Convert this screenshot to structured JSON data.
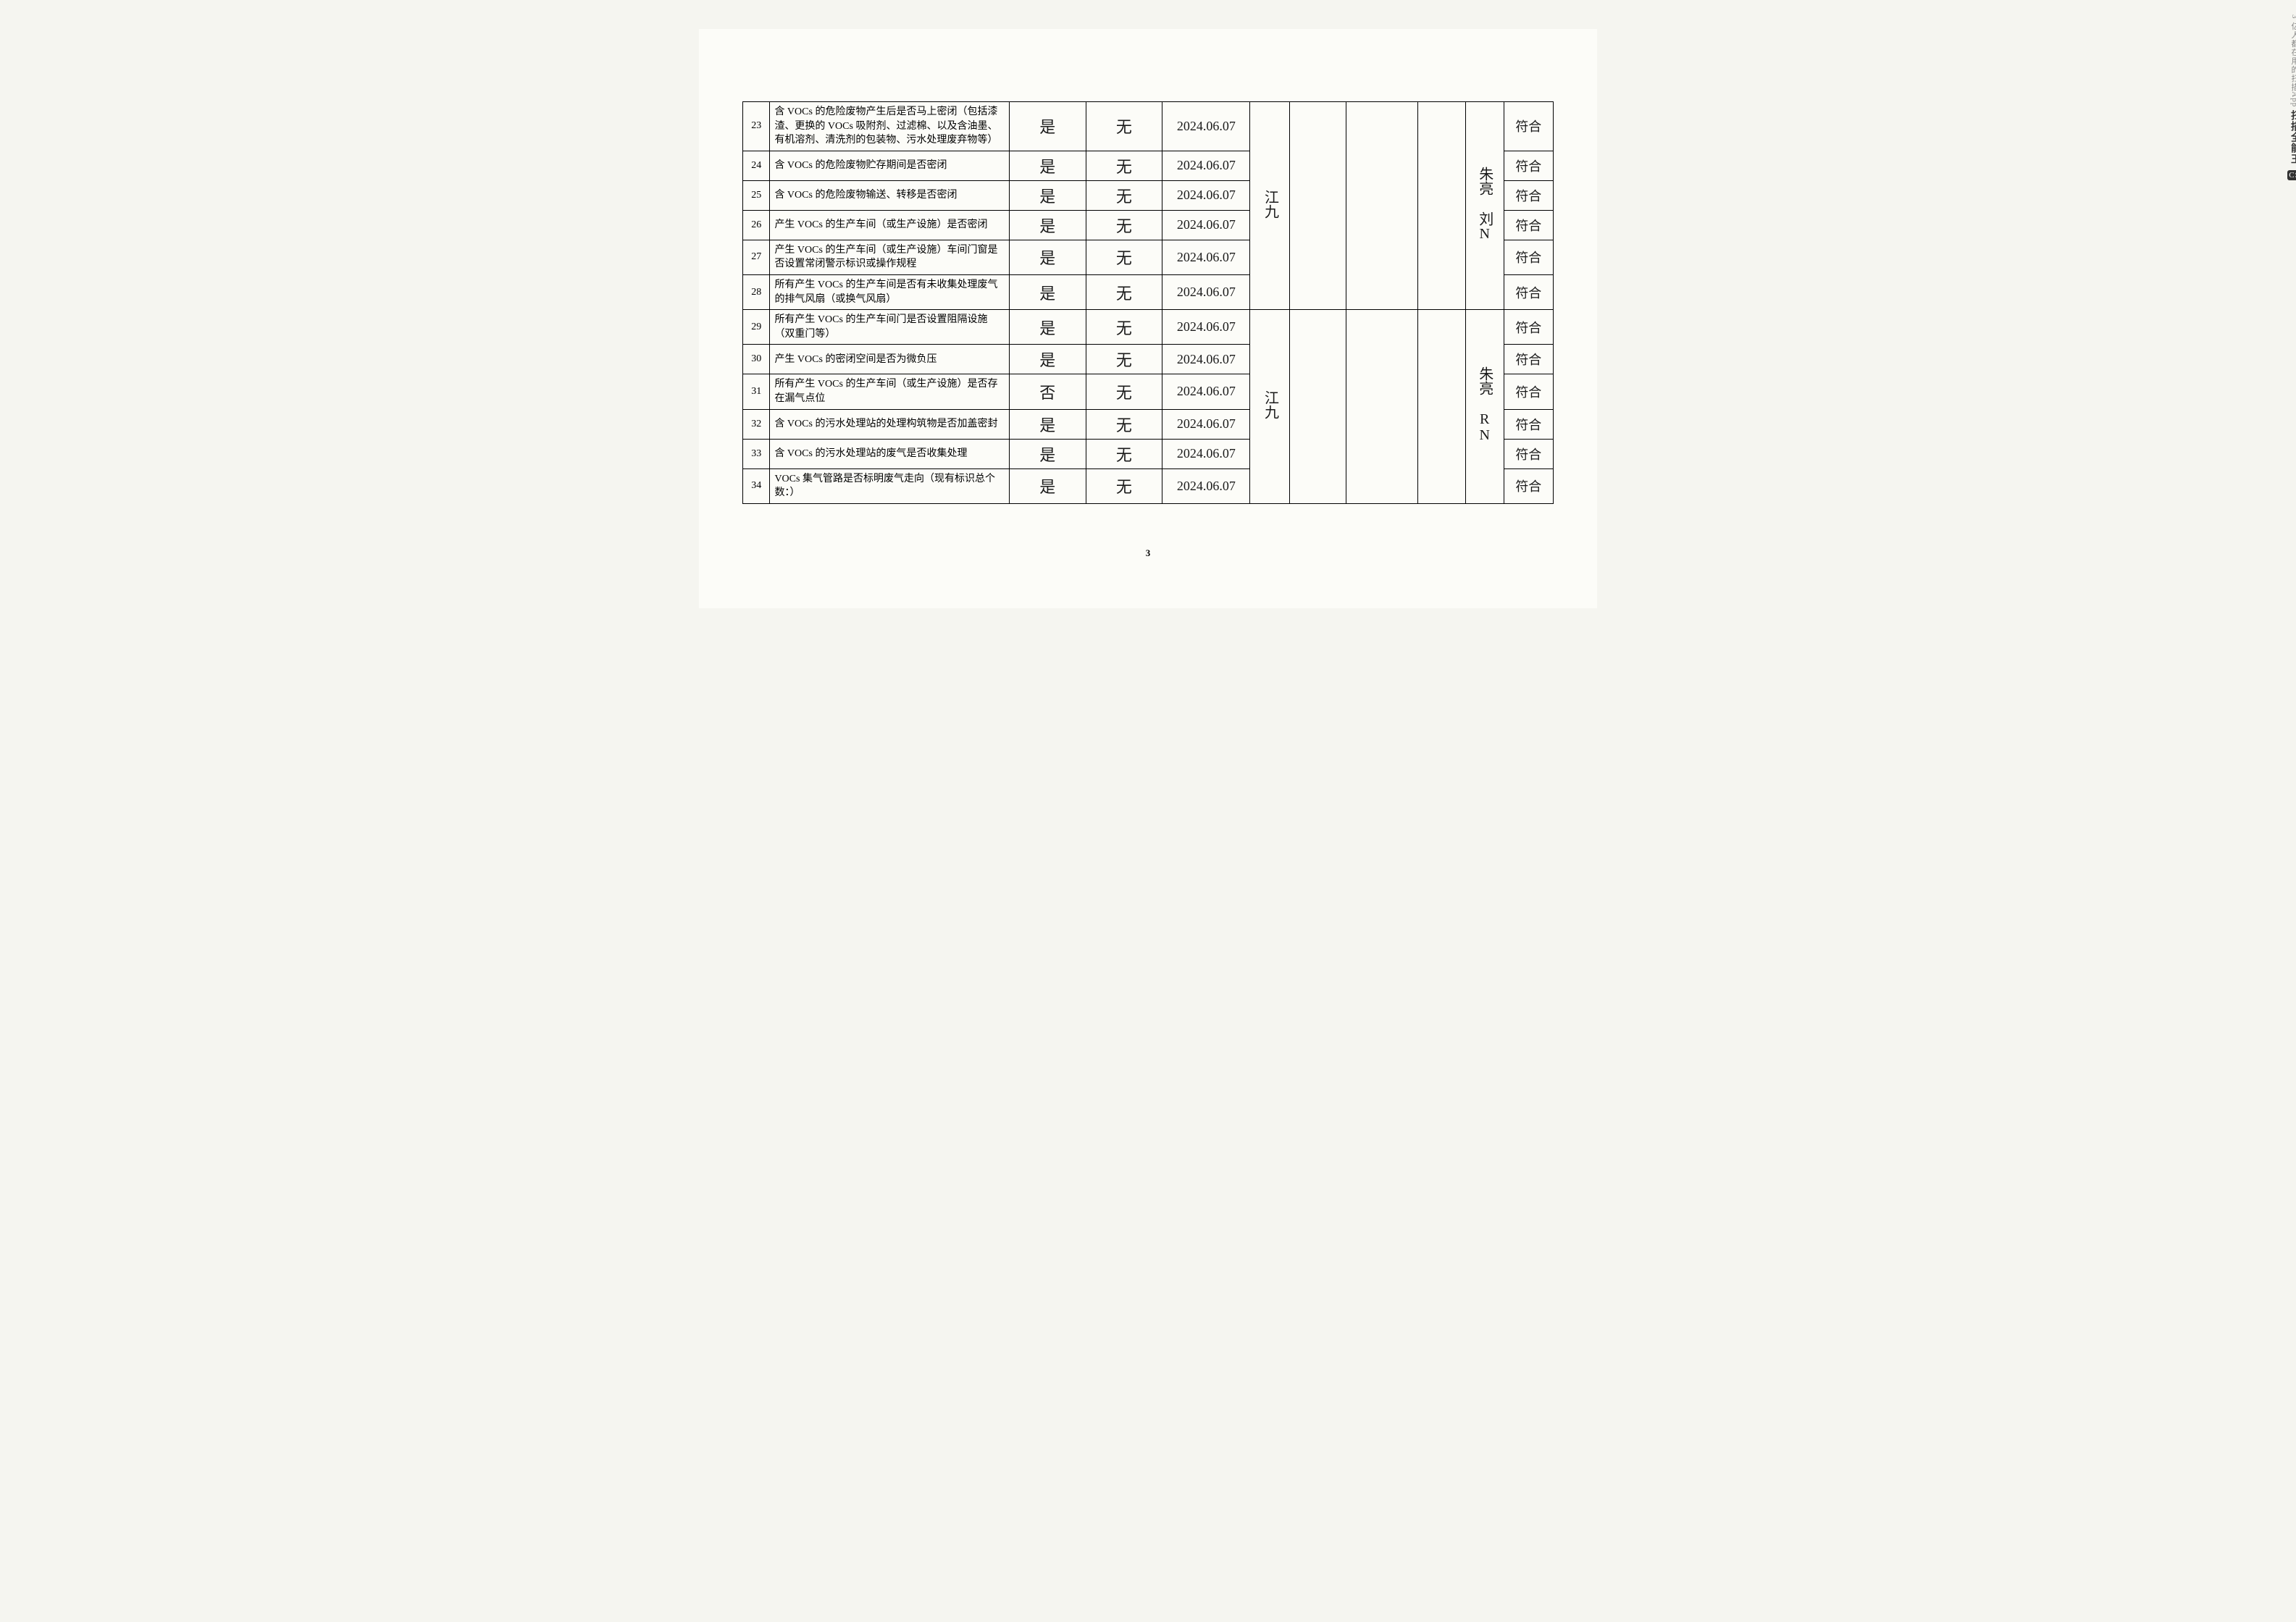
{
  "watermark": {
    "brand": "扫描全能王",
    "slogan": "3 亿人都在用的扫描App",
    "logo": "CS"
  },
  "page_number": "3",
  "signatures": {
    "group1_inspector": "江九",
    "group1_approver": "朱亮 刘N",
    "group2_inspector": "江九",
    "group2_approver": "朱亮 RN"
  },
  "rows": [
    {
      "num": "23",
      "desc": "含 VOCs 的危险废物产生后是否马上密闭（包括漆渣、更换的 VOCs 吸附剂、过滤棉、以及含油墨、有机溶剂、清洗剂的包装物、污水处理废弃物等）",
      "ans1": "是",
      "ans2": "无",
      "date": "2024.06.07",
      "result": "符合"
    },
    {
      "num": "24",
      "desc": "含 VOCs 的危险废物贮存期间是否密闭",
      "ans1": "是",
      "ans2": "无",
      "date": "2024.06.07",
      "result": "符合"
    },
    {
      "num": "25",
      "desc": "含 VOCs 的危险废物输送、转移是否密闭",
      "ans1": "是",
      "ans2": "无",
      "date": "2024.06.07",
      "result": "符合"
    },
    {
      "num": "26",
      "desc": "产生 VOCs 的生产车间（或生产设施）是否密闭",
      "ans1": "是",
      "ans2": "无",
      "date": "2024.06.07",
      "result": "符合"
    },
    {
      "num": "27",
      "desc": "产生 VOCs 的生产车间（或生产设施）车间门窗是否设置常闭警示标识或操作规程",
      "ans1": "是",
      "ans2": "无",
      "date": "2024.06.07",
      "result": "符合"
    },
    {
      "num": "28",
      "desc": "所有产生 VOCs 的生产车间是否有未收集处理废气的排气风扇（或换气风扇）",
      "ans1": "是",
      "ans2": "无",
      "date": "2024.06.07",
      "result": "符合"
    },
    {
      "num": "29",
      "desc": "所有产生 VOCs 的生产车间门是否设置阻隔设施（双重门等）",
      "ans1": "是",
      "ans2": "无",
      "date": "2024.06.07",
      "result": "符合"
    },
    {
      "num": "30",
      "desc": "产生 VOCs 的密闭空间是否为微负压",
      "ans1": "是",
      "ans2": "无",
      "date": "2024.06.07",
      "result": "符合"
    },
    {
      "num": "31",
      "desc": "所有产生 VOCs 的生产车间（或生产设施）是否存在漏气点位",
      "ans1": "否",
      "ans2": "无",
      "date": "2024.06.07",
      "result": "符合"
    },
    {
      "num": "32",
      "desc": "含 VOCs 的污水处理站的处理构筑物是否加盖密封",
      "ans1": "是",
      "ans2": "无",
      "date": "2024.06.07",
      "result": "符合"
    },
    {
      "num": "33",
      "desc": "含 VOCs 的污水处理站的废气是否收集处理",
      "ans1": "是",
      "ans2": "无",
      "date": "2024.06.07",
      "result": "符合"
    },
    {
      "num": "34",
      "desc": "VOCs 集气管路是否标明废气走向（现有标识总个数：）",
      "ans1": "是",
      "ans2": "无",
      "date": "2024.06.07",
      "result": "符合"
    }
  ]
}
